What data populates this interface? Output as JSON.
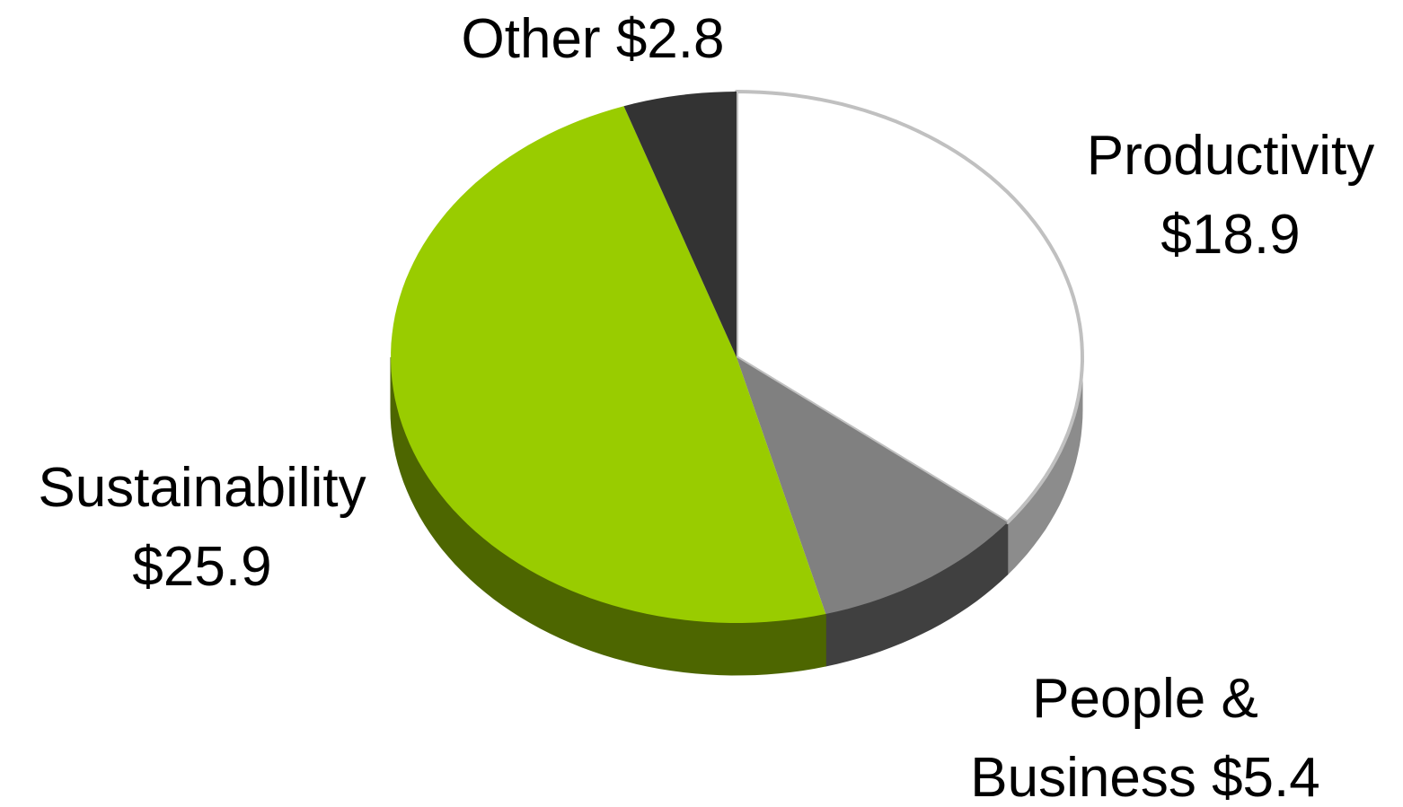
{
  "chart_data": {
    "type": "pie3d",
    "categories": [
      "Productivity",
      "People & Business",
      "Sustainability",
      "Other"
    ],
    "values": [
      18.9,
      5.4,
      25.9,
      2.8
    ],
    "value_labels": [
      "$18.9",
      "$5.4",
      "$25.9",
      "$2.8"
    ],
    "colors": [
      "#ffffff",
      "#808080",
      "#99cc00",
      "#333333"
    ],
    "side_colors": [
      "#8c8c8c",
      "#404040",
      "#4d6600",
      "#262626"
    ]
  }
}
